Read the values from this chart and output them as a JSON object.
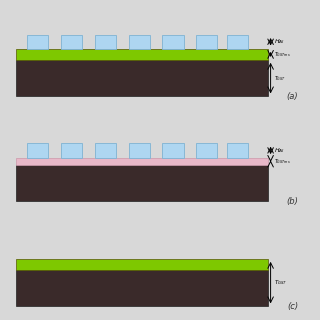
{
  "bg_color": "#d8d8d8",
  "panel_bg": "#e8e8e8",
  "panel_border": "#aaaaaa",
  "dark_layer_color": "#3a2a2a",
  "green_layer_color": "#7ec800",
  "pink_layer_color": "#e8b8c8",
  "al_cube_color": "#aed6f1",
  "al_cube_border": "#7fb3d3",
  "panels": [
    {
      "label": "(a)",
      "has_green": true,
      "has_pink": false,
      "has_al_cubes": true,
      "annotation_h": "H_Al",
      "annotation_t1": "T_GSTms",
      "annotation_t2": "T_GST"
    },
    {
      "label": "(b)",
      "has_green": false,
      "has_pink": true,
      "has_al_cubes": true,
      "annotation_h": "H_Al",
      "annotation_t1": "T_GSTms",
      "annotation_t2": null
    },
    {
      "label": "(c)",
      "has_green": true,
      "has_pink": false,
      "has_al_cubes": false,
      "annotation_h": null,
      "annotation_t1": null,
      "annotation_t2": "T_GST"
    }
  ]
}
